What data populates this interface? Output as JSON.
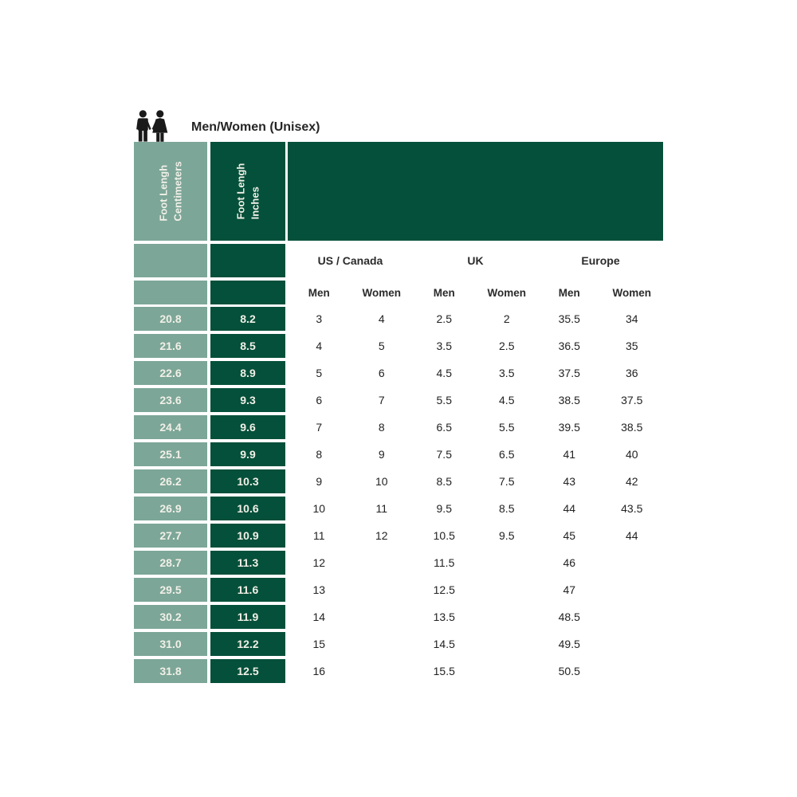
{
  "colors": {
    "sage": "#7CA698",
    "dark_green": "#05503A",
    "header_text": "#F1F0E8",
    "icon_black": "#1A1A1A"
  },
  "header": {
    "icon": "man-woman-icon",
    "title": "Men/Women (Unisex)"
  },
  "table": {
    "row_headers": [
      {
        "line1": "Foot Lengh",
        "line2": "Centimeters"
      },
      {
        "line1": "Foot Lengh",
        "line2": "Inches"
      }
    ],
    "column_groups": [
      "US / Canada",
      "UK",
      "Europe"
    ],
    "sub_columns": [
      "Men",
      "Women",
      "Men",
      "Women",
      "Men",
      "Women"
    ]
  },
  "chart_data": {
    "type": "table",
    "title": "Men/Women (Unisex)",
    "columns": [
      "Foot Lengh Centimeters",
      "Foot Lengh Inches",
      "US / Canada Men",
      "US / Canada Women",
      "UK Men",
      "UK Women",
      "Europe Men",
      "Europe Women"
    ],
    "rows": [
      [
        "20.8",
        "8.2",
        "3",
        "4",
        "2.5",
        "2",
        "35.5",
        "34"
      ],
      [
        "21.6",
        "8.5",
        "4",
        "5",
        "3.5",
        "2.5",
        "36.5",
        "35"
      ],
      [
        "22.6",
        "8.9",
        "5",
        "6",
        "4.5",
        "3.5",
        "37.5",
        "36"
      ],
      [
        "23.6",
        "9.3",
        "6",
        "7",
        "5.5",
        "4.5",
        "38.5",
        "37.5"
      ],
      [
        "24.4",
        "9.6",
        "7",
        "8",
        "6.5",
        "5.5",
        "39.5",
        "38.5"
      ],
      [
        "25.1",
        "9.9",
        "8",
        "9",
        "7.5",
        "6.5",
        "41",
        "40"
      ],
      [
        "26.2",
        "10.3",
        "9",
        "10",
        "8.5",
        "7.5",
        "43",
        "42"
      ],
      [
        "26.9",
        "10.6",
        "10",
        "11",
        "9.5",
        "8.5",
        "44",
        "43.5"
      ],
      [
        "27.7",
        "10.9",
        "11",
        "12",
        "10.5",
        "9.5",
        "45",
        "44"
      ],
      [
        "28.7",
        "11.3",
        "12",
        "",
        "11.5",
        "",
        "46",
        ""
      ],
      [
        "29.5",
        "11.6",
        "13",
        "",
        "12.5",
        "",
        "47",
        ""
      ],
      [
        "30.2",
        "11.9",
        "14",
        "",
        "13.5",
        "",
        "48.5",
        ""
      ],
      [
        "31.0",
        "12.2",
        "15",
        "",
        "14.5",
        "",
        "49.5",
        ""
      ],
      [
        "31.8",
        "12.5",
        "16",
        "",
        "15.5",
        "",
        "50.5",
        ""
      ]
    ]
  }
}
